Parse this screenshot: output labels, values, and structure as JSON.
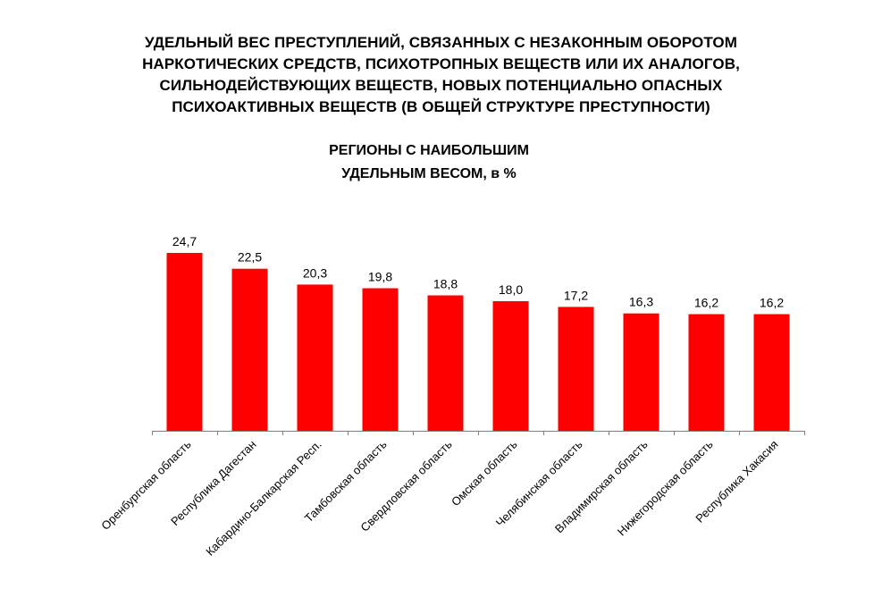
{
  "title_lines": [
    "УДЕЛЬНЫЙ ВЕС ПРЕСТУПЛЕНИЙ, СВЯЗАННЫХ С НЕЗАКОННЫМ ОБОРОТОМ",
    "НАРКОТИЧЕСКИХ СРЕДСТВ, ПСИХОТРОПНЫХ ВЕЩЕСТВ ИЛИ ИХ АНАЛОГОВ,",
    "СИЛЬНОДЕЙСТВУЮЩИХ ВЕЩЕСТВ, НОВЫХ ПОТЕНЦИАЛЬНО ОПАСНЫХ",
    "ПСИХОАКТИВНЫХ ВЕЩЕСТВ (В ОБЩЕЙ СТРУКТУРЕ ПРЕСТУПНОСТИ)"
  ],
  "subtitle_lines": [
    "РЕГИОНЫ С НАИБОЛЬШИМ",
    "УДЕЛЬНЫМ ВЕСОМ, в %"
  ],
  "colors": {
    "bar": "#ff0000",
    "axis": "#808080"
  },
  "chart_data": {
    "type": "bar",
    "title": "УДЕЛЬНЫЙ ВЕС ПРЕСТУПЛЕНИЙ, СВЯЗАННЫХ С НЕЗАКОННЫМ ОБОРОТОМ НАРКОТИЧЕСКИХ СРЕДСТВ, ПСИХОТРОПНЫХ ВЕЩЕСТВ ИЛИ ИХ АНАЛОГОВ, СИЛЬНОДЕЙСТВУЮЩИХ ВЕЩЕСТВ, НОВЫХ ПОТЕНЦИАЛЬНО ОПАСНЫХ ПСИХОАКТИВНЫХ ВЕЩЕСТВ (В ОБЩЕЙ СТРУКТУРЕ ПРЕСТУПНОСТИ)",
    "subtitle": "РЕГИОНЫ С НАИБОЛЬШИМ УДЕЛЬНЫМ ВЕСОМ, в %",
    "categories": [
      "Оренбургская область",
      "Республика Дагестан",
      "Кабардино-Балкарская Респ.",
      "Тамбовская область",
      "Свердловская область",
      "Омская область",
      "Челябинская область",
      "Владимирская область",
      "Нижегородская область",
      "Республика Хакасия"
    ],
    "values": [
      24.7,
      22.5,
      20.3,
      19.8,
      18.8,
      18.0,
      17.2,
      16.3,
      16.2,
      16.2
    ],
    "value_labels": [
      "24,7",
      "22,5",
      "20,3",
      "19,8",
      "18,8",
      "18,0",
      "17,2",
      "16,3",
      "16,2",
      "16,2"
    ],
    "xlabel": "",
    "ylabel": "",
    "ylim": [
      0,
      24.7
    ],
    "grid": false,
    "legend": "none"
  }
}
